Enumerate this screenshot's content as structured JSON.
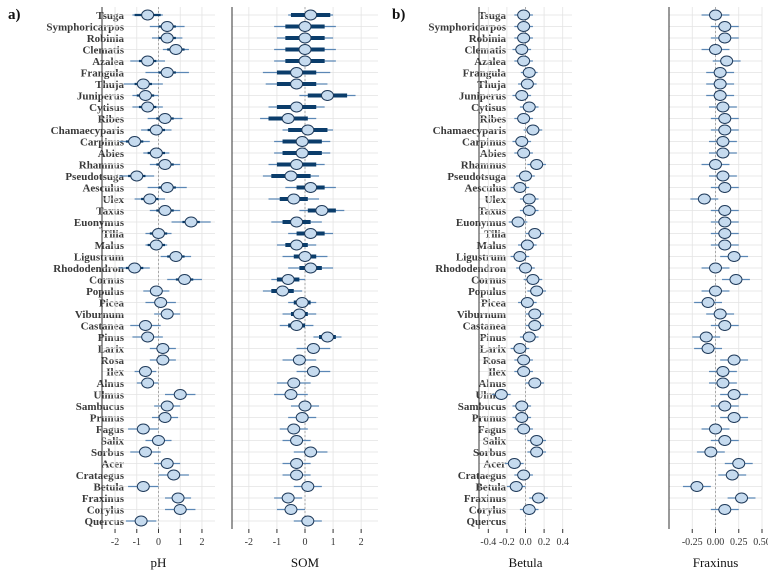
{
  "chart_data": {
    "type": "forest",
    "panels": [
      {
        "label": "a)",
        "genera": [
          "Tsuga",
          "Symphoricarpos",
          "Robinia",
          "Clematis",
          "Azalea",
          "Frangula",
          "Thuja",
          "Juniperus",
          "Cytisus",
          "Ribes",
          "Chamaecyparis",
          "Carpinus",
          "Abies",
          "Rhamnus",
          "Pseudotsuga",
          "Aesculus",
          "Ulex",
          "Taxus",
          "Euonymus",
          "Tilia",
          "Malus",
          "Ligustrum",
          "Rhododendron",
          "Cornus",
          "Populus",
          "Picea",
          "Viburnum",
          "Castanea",
          "Pinus",
          "Larix",
          "Rosa",
          "Ilex",
          "Alnus",
          "Ulmus",
          "Sambucus",
          "Prunus",
          "Fagus",
          "Salix",
          "Sorbus",
          "Acer",
          "Crataegus",
          "Betula",
          "Fraxinus",
          "Corylus",
          "Quercus"
        ],
        "subplots": [
          {
            "xlabel": "pH",
            "xlim": [
              -2.6,
              2.6
            ],
            "ticks": [
              -2,
              -1,
              0,
              1,
              2
            ],
            "tick_labels": [
              "-2",
              "-1",
              "0",
              "1",
              "2"
            ],
            "estimates": [
              -0.5,
              0.4,
              0.4,
              0.8,
              -0.5,
              0.4,
              -0.7,
              -0.6,
              -0.5,
              0.3,
              -0.1,
              -1.1,
              -0.1,
              0.3,
              -1.0,
              0.4,
              -0.4,
              0.3,
              1.5,
              0.0,
              -0.1,
              0.8,
              -1.1,
              1.2,
              -0.1,
              0.1,
              0.4,
              -0.6,
              -0.5,
              0.2,
              0.2,
              -0.6,
              -0.5,
              1.0,
              0.4,
              0.3,
              -0.7,
              0.0,
              -0.6,
              0.4,
              0.7,
              -0.7,
              0.9,
              1.0,
              -0.8
            ],
            "ci_low": [
              -1.2,
              -0.4,
              -0.3,
              0.2,
              -1.3,
              -0.6,
              -1.6,
              -1.2,
              -1.2,
              -0.5,
              -0.8,
              -1.8,
              -0.7,
              -0.4,
              -1.8,
              -0.5,
              -1.1,
              -0.4,
              0.6,
              -0.6,
              -0.6,
              0.1,
              -1.8,
              0.4,
              -0.7,
              -0.6,
              -0.2,
              -1.3,
              -1.2,
              -0.4,
              -0.4,
              -1.1,
              -1.0,
              0.3,
              -0.2,
              -0.3,
              -1.4,
              -0.6,
              -1.3,
              -0.2,
              0.0,
              -1.4,
              0.3,
              0.3,
              -1.5
            ],
            "ci_high": [
              0.2,
              1.2,
              1.1,
              1.4,
              0.3,
              1.4,
              0.2,
              0.0,
              0.2,
              1.1,
              0.6,
              -0.4,
              0.5,
              1.0,
              -0.2,
              1.3,
              0.3,
              1.0,
              2.4,
              0.6,
              0.4,
              1.5,
              -0.4,
              2.0,
              0.5,
              0.8,
              1.0,
              0.1,
              0.2,
              0.8,
              0.8,
              -0.1,
              0.0,
              1.7,
              1.0,
              0.9,
              0.0,
              0.6,
              0.1,
              1.0,
              1.4,
              0.0,
              1.5,
              1.7,
              -0.1
            ],
            "dark_cis": [
              0.6,
              0.4,
              0.4,
              0.4,
              0.4,
              0.4,
              0.4,
              0.4,
              0.4,
              0.4,
              0.4,
              0.4,
              0.4,
              0.4,
              0.4,
              0.4,
              0.4,
              0.4,
              0.4,
              0.4,
              0.4,
              0.4,
              0.4,
              0.4,
              0,
              0,
              0,
              0,
              0,
              0,
              0,
              0,
              0,
              0,
              0,
              0,
              0,
              0,
              0,
              0,
              0,
              0,
              0,
              0,
              0
            ],
            "dark_width": 0
          },
          {
            "xlabel": "SOM",
            "xlim": [
              -2.6,
              2.6
            ],
            "ticks": [
              -2,
              -1,
              0,
              1,
              2
            ],
            "tick_labels": [
              "-2",
              "-1",
              "0",
              "1",
              "2"
            ],
            "estimates": [
              0.2,
              0.0,
              0.0,
              0.0,
              0.0,
              -0.3,
              -0.3,
              0.8,
              -0.3,
              -0.6,
              0.1,
              -0.1,
              -0.1,
              -0.3,
              -0.5,
              0.2,
              -0.4,
              0.6,
              -0.3,
              0.2,
              -0.3,
              0.0,
              0.2,
              -0.6,
              -0.8,
              -0.1,
              -0.2,
              -0.3,
              0.8,
              0.3,
              -0.2,
              0.3,
              -0.4,
              -0.5,
              0.0,
              -0.1,
              -0.4,
              -0.3,
              0.2,
              -0.3,
              -0.3,
              0.1,
              -0.6,
              -0.5,
              0.1
            ],
            "ci_low": [
              -0.6,
              -1.1,
              -1.0,
              -1.1,
              -1.1,
              -1.5,
              -1.4,
              -0.2,
              -1.3,
              -1.6,
              -0.8,
              -1.1,
              -1.1,
              -1.3,
              -1.5,
              -0.7,
              -1.3,
              -0.2,
              -1.2,
              -0.6,
              -1.0,
              -0.8,
              -0.6,
              -1.2,
              -1.5,
              -0.6,
              -0.8,
              -0.9,
              0.3,
              -0.3,
              -0.8,
              -0.3,
              -1.0,
              -1.1,
              -0.5,
              -0.6,
              -0.9,
              -0.8,
              -0.4,
              -0.8,
              -0.8,
              -0.4,
              -1.1,
              -1.0,
              -0.4
            ],
            "ci_high": [
              1.0,
              1.1,
              1.0,
              1.1,
              1.1,
              0.9,
              0.8,
              1.8,
              0.7,
              0.4,
              1.0,
              0.9,
              0.9,
              0.7,
              0.5,
              1.1,
              0.5,
              1.4,
              0.6,
              1.0,
              0.4,
              0.8,
              1.0,
              0.0,
              -0.1,
              0.4,
              0.4,
              0.3,
              1.3,
              0.9,
              0.4,
              0.9,
              0.2,
              0.1,
              0.5,
              0.4,
              0.1,
              0.2,
              0.8,
              0.2,
              0.2,
              0.6,
              -0.1,
              0.0,
              0.6
            ],
            "dark_cis": [
              0.7,
              0.7,
              0.7,
              0.7,
              0.7,
              0.7,
              0.7,
              0.7,
              0.7,
              0.7,
              0.7,
              0.7,
              0.7,
              0.7,
              0.7,
              0.5,
              0.5,
              0.5,
              0.5,
              0.5,
              0.4,
              0.4,
              0.4,
              0.4,
              0.4,
              0.3,
              0.3,
              0.3,
              0.3,
              0,
              0,
              0,
              0,
              0,
              0,
              0,
              0,
              0,
              0,
              0,
              0,
              0,
              0,
              0,
              0
            ],
            "dark_width": 1
          }
        ]
      },
      {
        "label": "b)",
        "genera": [
          "Tsuga",
          "Symphoricarpos",
          "Robinia",
          "Clematis",
          "Azalea",
          "Frangula",
          "Thuja",
          "Juniperus",
          "Cytisus",
          "Ribes",
          "Chamaecyparis",
          "Carpinus",
          "Abies",
          "Rhamnus",
          "Pseudotsuga",
          "Aesculus",
          "Ulex",
          "Taxus",
          "Euonymus",
          "Tilia",
          "Malus",
          "Ligustrum",
          "Rhododendron",
          "Cornus",
          "Populus",
          "Picea",
          "Viburnum",
          "Castanea",
          "Pinus",
          "Larix",
          "Rosa",
          "Ilex",
          "Alnus",
          "Ulmus",
          "Sambucus",
          "Prunus",
          "Fagus",
          "Salix",
          "Sorbus",
          "Acer",
          "Crataegus",
          "Betula",
          "Fraxinus",
          "Corylus",
          "Quercus"
        ],
        "subplots": [
          {
            "xlabel": "Betula",
            "xlim": [
              -0.5,
              0.5
            ],
            "ticks": [
              -0.4,
              -0.2,
              0.0,
              0.2,
              0.4
            ],
            "tick_labels": [
              "-0.4",
              "-0.2",
              "0.0",
              "0.2",
              "0.4"
            ],
            "estimates": [
              -0.02,
              -0.02,
              -0.02,
              -0.04,
              -0.02,
              0.04,
              0.02,
              -0.04,
              0.04,
              -0.02,
              0.08,
              -0.04,
              -0.02,
              0.12,
              0.0,
              -0.06,
              0.04,
              0.04,
              -0.08,
              0.1,
              0.02,
              -0.06,
              0.0,
              0.08,
              0.12,
              0.02,
              0.1,
              0.1,
              0.04,
              -0.06,
              -0.02,
              -0.02,
              0.1,
              -0.26,
              -0.04,
              -0.04,
              -0.02,
              0.12,
              0.12,
              -0.12,
              -0.02,
              -0.1,
              0.14,
              0.04
            ],
            "ci_low": [
              -0.12,
              -0.12,
              -0.12,
              -0.14,
              -0.12,
              -0.05,
              -0.08,
              -0.14,
              -0.06,
              -0.12,
              -0.02,
              -0.14,
              -0.12,
              0.02,
              -0.1,
              -0.16,
              -0.06,
              -0.06,
              -0.18,
              0.0,
              -0.08,
              -0.16,
              -0.1,
              -0.02,
              0.02,
              -0.08,
              0.0,
              0.0,
              -0.06,
              -0.16,
              -0.12,
              -0.12,
              0.0,
              -0.36,
              -0.14,
              -0.14,
              -0.12,
              0.02,
              0.02,
              -0.22,
              -0.12,
              -0.2,
              0.04,
              -0.06
            ],
            "ci_high": [
              0.08,
              0.08,
              0.08,
              0.06,
              0.08,
              0.13,
              0.12,
              0.06,
              0.14,
              0.08,
              0.18,
              0.06,
              0.08,
              0.22,
              0.1,
              0.04,
              0.14,
              0.14,
              0.02,
              0.2,
              0.12,
              0.04,
              0.1,
              0.18,
              0.22,
              0.12,
              0.2,
              0.2,
              0.14,
              0.04,
              0.08,
              0.08,
              0.2,
              -0.16,
              0.06,
              0.06,
              0.08,
              0.22,
              0.22,
              -0.02,
              0.08,
              0.0,
              0.24,
              0.14
            ],
            "dark_cis": [],
            "dark_width": 0
          },
          {
            "xlabel": "Fraxinus",
            "xlim": [
              -0.5,
              0.5
            ],
            "ticks": [
              -0.25,
              0.0,
              0.25,
              0.5
            ],
            "tick_labels": [
              "-0.25",
              "0.00",
              "0.25",
              "0.50"
            ],
            "estimates": [
              0.0,
              0.1,
              0.1,
              0.0,
              0.12,
              0.05,
              0.05,
              0.05,
              0.08,
              0.1,
              0.1,
              0.08,
              0.08,
              0.0,
              0.08,
              0.1,
              -0.12,
              0.1,
              0.1,
              0.1,
              0.1,
              0.2,
              0.0,
              0.22,
              0.0,
              -0.08,
              0.05,
              0.1,
              -0.1,
              -0.08,
              0.2,
              0.08,
              0.08,
              0.2,
              0.1,
              0.2,
              0.0,
              0.1,
              -0.05,
              0.25,
              0.18,
              -0.2,
              0.28,
              0.1
            ],
            "ci_low": [
              -0.15,
              -0.05,
              -0.05,
              -0.15,
              -0.03,
              -0.1,
              -0.1,
              -0.1,
              -0.07,
              -0.05,
              -0.05,
              -0.07,
              -0.07,
              -0.15,
              -0.07,
              -0.05,
              -0.27,
              -0.05,
              -0.05,
              -0.05,
              -0.05,
              0.05,
              -0.15,
              0.07,
              -0.15,
              -0.23,
              -0.1,
              -0.05,
              -0.25,
              -0.23,
              0.05,
              -0.07,
              -0.07,
              0.05,
              -0.05,
              0.05,
              -0.15,
              -0.05,
              -0.2,
              0.1,
              0.03,
              -0.35,
              0.13,
              -0.05
            ],
            "ci_high": [
              0.15,
              0.25,
              0.25,
              0.15,
              0.27,
              0.2,
              0.2,
              0.2,
              0.23,
              0.25,
              0.25,
              0.23,
              0.23,
              0.15,
              0.23,
              0.25,
              0.03,
              0.25,
              0.25,
              0.25,
              0.25,
              0.35,
              0.15,
              0.37,
              0.15,
              0.07,
              0.2,
              0.25,
              0.05,
              0.07,
              0.35,
              0.23,
              0.23,
              0.35,
              0.25,
              0.35,
              0.15,
              0.25,
              0.1,
              0.4,
              0.33,
              -0.05,
              0.43,
              0.25
            ],
            "dark_cis": [],
            "dark_width": 0
          }
        ]
      }
    ],
    "colors": {
      "point_fill": "#c6dbef",
      "point_stroke": "#1f3a5a",
      "ci_light": "#5b87b5",
      "ci_dark": "#0b3d6b",
      "grid": "#e3e3e3",
      "zero_line": "#999999",
      "axis": "#333333"
    }
  }
}
